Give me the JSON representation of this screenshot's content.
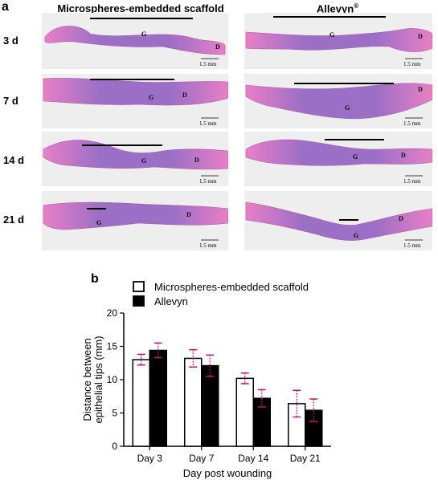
{
  "panel_a": {
    "letter": "a",
    "columns": [
      "Microspheres-embedded scaffold",
      "Allevyn"
    ],
    "allevyn_superscript": "®",
    "rows": [
      "3 d",
      "7 d",
      "14 d",
      "21 d"
    ],
    "scale_bar": "1.5 mm",
    "label_granulation": "G",
    "label_dermis": "D"
  },
  "colors": {
    "tissue_pink": "#e87fc6",
    "tissue_purple": "#9c6fc6",
    "background_tile": "#eeeeee",
    "bar_open": "#ffffff",
    "bar_filled": "#000000",
    "error_bar": "#cc1177"
  },
  "chart_data": {
    "panel_letter": "b",
    "type": "bar",
    "categories": [
      "Day 3",
      "Day 7",
      "Day 14",
      "Day 21"
    ],
    "series": [
      {
        "name": "Microspheres-embedded scaffold",
        "values": [
          13.0,
          13.2,
          10.2,
          6.4
        ],
        "errors": [
          0.8,
          1.3,
          0.8,
          2.0
        ],
        "fill": "open"
      },
      {
        "name": "Allevyn",
        "values": [
          14.4,
          12.1,
          7.2,
          5.4
        ],
        "errors": [
          1.1,
          1.6,
          1.3,
          1.7
        ],
        "fill": "filled"
      }
    ],
    "xlabel": "Day post wounding",
    "ylabel_line1": "Distance between",
    "ylabel_line2": "epithelial tips (mm)",
    "ylim": [
      0,
      20
    ],
    "yticks": [
      "0",
      "5",
      "10",
      "15",
      "20"
    ],
    "grid": false,
    "legend_position": "top"
  }
}
